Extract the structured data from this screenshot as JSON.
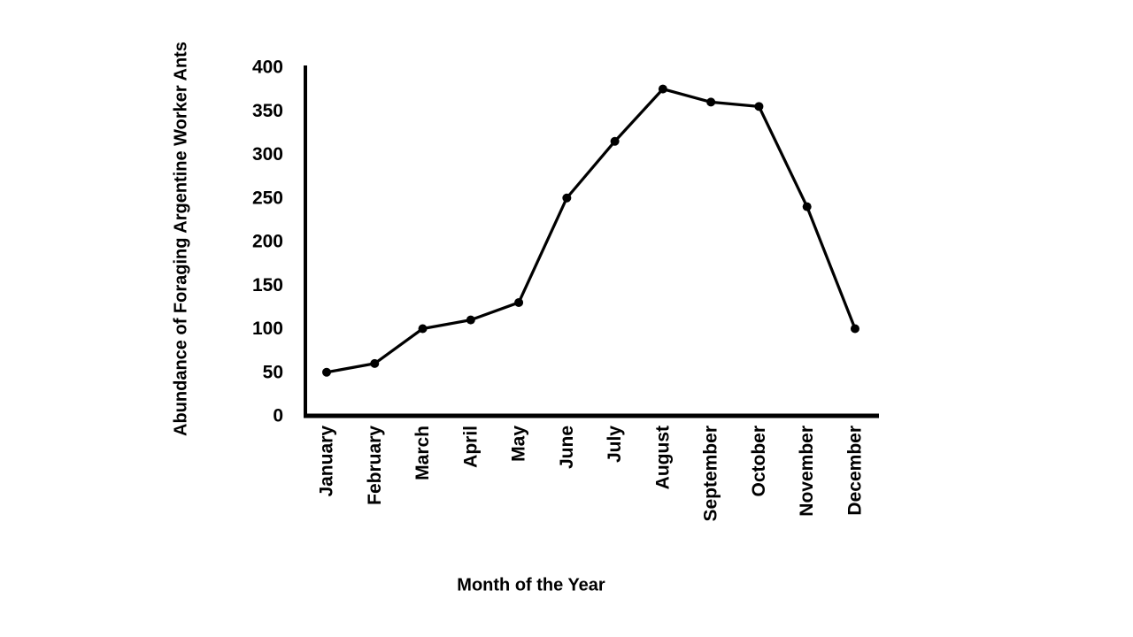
{
  "chart_data": {
    "type": "line",
    "title": "",
    "xlabel": "Month of the Year",
    "ylabel": "Abundance of Foraging Argentine Worker Ants",
    "categories": [
      "January",
      "February",
      "March",
      "April",
      "May",
      "June",
      "July",
      "August",
      "September",
      "October",
      "November",
      "December"
    ],
    "values": [
      50,
      60,
      100,
      110,
      130,
      250,
      315,
      375,
      360,
      355,
      240,
      100
    ],
    "ylim": [
      0,
      400
    ],
    "yticks": [
      0,
      50,
      100,
      150,
      200,
      250,
      300,
      350,
      400
    ],
    "grid": false,
    "legend": "none",
    "line_color": "#000000",
    "marker": "filled-circle",
    "axis_color": "#000000",
    "background_color": "#ffffff"
  }
}
